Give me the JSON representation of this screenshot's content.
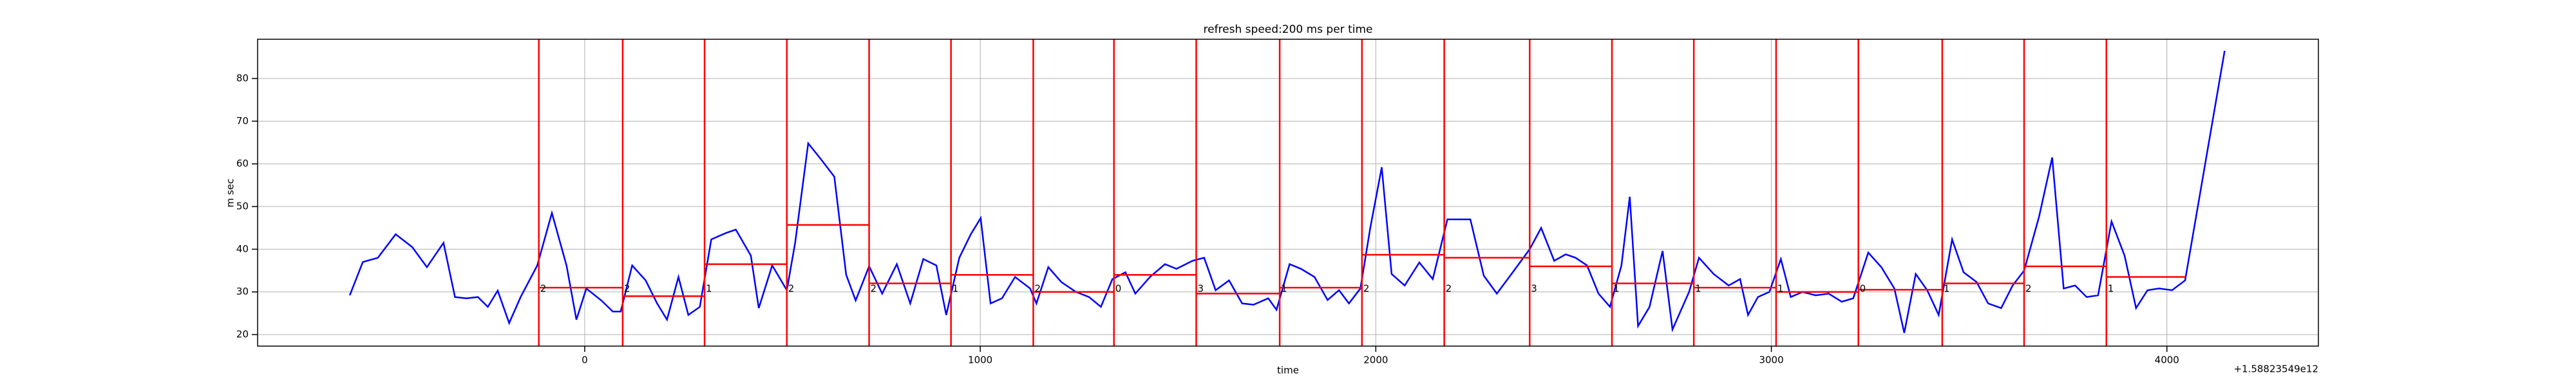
{
  "chart_data": {
    "type": "line",
    "title": "refresh speed:200 ms per time",
    "x_label": "time",
    "y_label": "m sec",
    "x_offset_label": "+1.58823549e12",
    "xlim": [
      -827,
      4383
    ],
    "ylim": [
      17.3,
      89.2
    ],
    "xticks": [
      0,
      1000,
      2000,
      3000,
      4000
    ],
    "yticks": [
      20,
      30,
      40,
      50,
      60,
      70,
      80
    ],
    "grid": true,
    "series": [
      {
        "color": "#0000ff",
        "x": [
          -594,
          -561,
          -523,
          -478,
          -436,
          -399,
          -357,
          -328,
          -299,
          -270,
          -245,
          -220,
          -191,
          -162,
          -120,
          -83,
          -46,
          -21,
          4,
          42,
          71,
          91,
          120,
          154,
          183,
          208,
          237,
          262,
          291,
          320,
          357,
          382,
          420,
          440,
          474,
          511,
          532,
          565,
          598,
          631,
          661,
          685,
          719,
          752,
          789,
          823,
          856,
          889,
          914,
          947,
          976,
          1001,
          1026,
          1055,
          1088,
          1126,
          1142,
          1172,
          1205,
          1242,
          1275,
          1305,
          1334,
          1367,
          1392,
          1429,
          1467,
          1496,
          1537,
          1566,
          1595,
          1629,
          1662,
          1691,
          1728,
          1749,
          1782,
          1811,
          1845,
          1878,
          1907,
          1932,
          1961,
          1986,
          2015,
          2040,
          2073,
          2110,
          2144,
          2181,
          2239,
          2273,
          2306,
          2343,
          2389,
          2418,
          2451,
          2480,
          2505,
          2534,
          2563,
          2592,
          2621,
          2642,
          2663,
          2692,
          2725,
          2750,
          2792,
          2817,
          2854,
          2892,
          2921,
          2941,
          2966,
          2995,
          3024,
          3049,
          3079,
          3112,
          3145,
          3178,
          3207,
          3245,
          3278,
          3311,
          3336,
          3365,
          3394,
          3423,
          3457,
          3486,
          3519,
          3548,
          3581,
          3610,
          3639,
          3677,
          3710,
          3739,
          3768,
          3797,
          3826,
          3860,
          3893,
          3922,
          3951,
          3980,
          4013,
          4046,
          4146
        ],
        "values": [
          29.2,
          37,
          38,
          43.5,
          40.5,
          35.8,
          41.5,
          28.8,
          28.5,
          28.8,
          26.5,
          30.3,
          22.7,
          28.8,
          36.2,
          48.5,
          36.2,
          23.5,
          30.8,
          28,
          25.4,
          25.4,
          36.2,
          32.7,
          27.3,
          23.5,
          33.5,
          24.6,
          26.5,
          42.3,
          43.8,
          44.6,
          38.5,
          26.2,
          36.2,
          30.4,
          41.5,
          64.8,
          61,
          57,
          34,
          28,
          36,
          29.6,
          36.5,
          27.3,
          37.7,
          36.2,
          24.6,
          38,
          43.5,
          47.3,
          27.3,
          28.5,
          33.5,
          30.8,
          27.3,
          35.8,
          32.3,
          30,
          28.8,
          26.5,
          33,
          34.6,
          29.6,
          33.5,
          36.5,
          35.4,
          37.3,
          38,
          30.4,
          32.7,
          27.3,
          27,
          28.5,
          25.8,
          36.5,
          35.4,
          33.5,
          28.1,
          30.4,
          27.3,
          30.8,
          45,
          59.2,
          34.2,
          31.5,
          36.9,
          33,
          47,
          47,
          33.8,
          29.6,
          34.2,
          40,
          45,
          37.3,
          38.8,
          38,
          36.2,
          29.6,
          26.5,
          36.2,
          52.3,
          22,
          26.5,
          39.6,
          21.2,
          30,
          38,
          34.2,
          31.5,
          33,
          24.6,
          28.8,
          30,
          37.7,
          28.8,
          30,
          29.2,
          29.6,
          27.7,
          28.5,
          39.2,
          35.8,
          30.8,
          20.4,
          34.2,
          30.4,
          24.6,
          42.3,
          34.6,
          32.3,
          27.3,
          26.2,
          31.5,
          35,
          47.7,
          61.5,
          30.8,
          31.5,
          28.8,
          29.2,
          46.5,
          38.5,
          26.2,
          30.4,
          30.8,
          30.4,
          32.7,
          86.5
        ]
      }
    ],
    "vlines": {
      "color": "#ff0000",
      "x": [
        -116,
        96,
        303,
        511,
        719,
        926,
        1134,
        1338,
        1546,
        1757,
        1965,
        2173,
        2389,
        2597,
        2804,
        3012,
        3220,
        3432,
        3639,
        3847
      ]
    },
    "segments": {
      "color": "#ff0000",
      "items": [
        {
          "x0": -116,
          "x1": 96,
          "y": 31,
          "label": "2"
        },
        {
          "x0": 96,
          "x1": 303,
          "y": 29,
          "label": "2"
        },
        {
          "x0": 303,
          "x1": 511,
          "y": 36.5,
          "label": "1"
        },
        {
          "x0": 511,
          "x1": 719,
          "y": 45.7,
          "label": "2"
        },
        {
          "x0": 719,
          "x1": 926,
          "y": 32,
          "label": "2"
        },
        {
          "x0": 926,
          "x1": 1134,
          "y": 34,
          "label": "1"
        },
        {
          "x0": 1134,
          "x1": 1338,
          "y": 30,
          "label": "2"
        },
        {
          "x0": 1338,
          "x1": 1546,
          "y": 34,
          "label": "0"
        },
        {
          "x0": 1546,
          "x1": 1757,
          "y": 29.6,
          "label": "3"
        },
        {
          "x0": 1757,
          "x1": 1965,
          "y": 31,
          "label": "1"
        },
        {
          "x0": 1965,
          "x1": 2173,
          "y": 38.7,
          "label": "2"
        },
        {
          "x0": 2173,
          "x1": 2389,
          "y": 38,
          "label": "2"
        },
        {
          "x0": 2389,
          "x1": 2597,
          "y": 36,
          "label": "3"
        },
        {
          "x0": 2597,
          "x1": 2804,
          "y": 32,
          "label": "1"
        },
        {
          "x0": 2804,
          "x1": 3012,
          "y": 31,
          "label": "1"
        },
        {
          "x0": 3012,
          "x1": 3220,
          "y": 30,
          "label": "1"
        },
        {
          "x0": 3220,
          "x1": 3432,
          "y": 30.5,
          "label": "0"
        },
        {
          "x0": 3432,
          "x1": 3639,
          "y": 32,
          "label": "1"
        },
        {
          "x0": 3639,
          "x1": 3847,
          "y": 36,
          "label": "2"
        },
        {
          "x0": 3847,
          "x1": 4046,
          "y": 33.5,
          "label": "1"
        }
      ]
    }
  }
}
